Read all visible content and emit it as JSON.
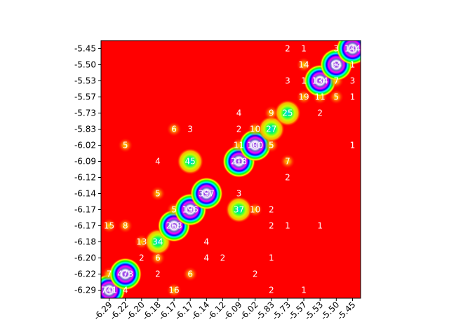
{
  "chart_data": {
    "type": "heatmap",
    "title": "",
    "xlabel": "",
    "ylabel": "",
    "colors": {
      "background": "#ff0000",
      "halo": "#ff6a00",
      "frame": "#000000"
    },
    "x_tick_labels": [
      "-6.29",
      "-6.22",
      "-6.20",
      "-6.18",
      "-6.17",
      "-6.17",
      "-6.14",
      "-6.12",
      "-6.09",
      "-6.02",
      "-5.83",
      "-5.73",
      "-5.57",
      "-5.53",
      "-5.50",
      "-5.45"
    ],
    "y_tick_labels": [
      "-5.45",
      "-5.50",
      "-5.53",
      "-5.57",
      "-5.73",
      "-5.83",
      "-6.02",
      "-6.09",
      "-6.12",
      "-6.14",
      "-6.17",
      "-6.17",
      "-6.18",
      "-6.20",
      "-6.22",
      "-6.29"
    ],
    "cells": [
      {
        "x": 0,
        "y": 15,
        "v": "741"
      },
      {
        "x": 1,
        "y": 15,
        "v": "4"
      },
      {
        "x": 4,
        "y": 15,
        "v": "16"
      },
      {
        "x": 10,
        "y": 15,
        "v": "2"
      },
      {
        "x": 12,
        "y": 15,
        "v": "1"
      },
      {
        "x": 0,
        "y": 14,
        "v": "7"
      },
      {
        "x": 1,
        "y": 14,
        "v": "473"
      },
      {
        "x": 3,
        "y": 14,
        "v": "2"
      },
      {
        "x": 5,
        "y": 14,
        "v": "6"
      },
      {
        "x": 9,
        "y": 14,
        "v": "2"
      },
      {
        "x": 2,
        "y": 13,
        "v": "2"
      },
      {
        "x": 3,
        "y": 13,
        "v": "6"
      },
      {
        "x": 6,
        "y": 13,
        "v": "4"
      },
      {
        "x": 7,
        "y": 13,
        "v": "2"
      },
      {
        "x": 10,
        "y": 13,
        "v": "1"
      },
      {
        "x": 2,
        "y": 12,
        "v": "13"
      },
      {
        "x": 3,
        "y": 12,
        "v": "34"
      },
      {
        "x": 6,
        "y": 12,
        "v": "4"
      },
      {
        "x": 0,
        "y": 11,
        "v": "15"
      },
      {
        "x": 1,
        "y": 11,
        "v": "8"
      },
      {
        "x": 4,
        "y": 11,
        "v": "268"
      },
      {
        "x": 10,
        "y": 11,
        "v": "2"
      },
      {
        "x": 11,
        "y": 11,
        "v": "1"
      },
      {
        "x": 13,
        "y": 11,
        "v": "1"
      },
      {
        "x": 4,
        "y": 10,
        "v": "5"
      },
      {
        "x": 5,
        "y": 10,
        "v": "196"
      },
      {
        "x": 8,
        "y": 10,
        "v": "37"
      },
      {
        "x": 9,
        "y": 10,
        "v": "10"
      },
      {
        "x": 10,
        "y": 10,
        "v": "2"
      },
      {
        "x": 3,
        "y": 9,
        "v": "5"
      },
      {
        "x": 6,
        "y": 9,
        "v": "397"
      },
      {
        "x": 8,
        "y": 9,
        "v": "3"
      },
      {
        "x": 11,
        "y": 8,
        "v": "2"
      },
      {
        "x": 3,
        "y": 7,
        "v": "4"
      },
      {
        "x": 5,
        "y": 7,
        "v": "45"
      },
      {
        "x": 8,
        "y": 7,
        "v": "218"
      },
      {
        "x": 11,
        "y": 7,
        "v": "7"
      },
      {
        "x": 1,
        "y": 6,
        "v": "5"
      },
      {
        "x": 8,
        "y": 6,
        "v": "11"
      },
      {
        "x": 9,
        "y": 6,
        "v": "100"
      },
      {
        "x": 10,
        "y": 6,
        "v": "5"
      },
      {
        "x": 15,
        "y": 6,
        "v": "1"
      },
      {
        "x": 4,
        "y": 5,
        "v": "6"
      },
      {
        "x": 5,
        "y": 5,
        "v": "3"
      },
      {
        "x": 8,
        "y": 5,
        "v": "2"
      },
      {
        "x": 9,
        "y": 5,
        "v": "10"
      },
      {
        "x": 10,
        "y": 5,
        "v": "27"
      },
      {
        "x": 8,
        "y": 4,
        "v": "4"
      },
      {
        "x": 10,
        "y": 4,
        "v": "9"
      },
      {
        "x": 11,
        "y": 4,
        "v": "25"
      },
      {
        "x": 13,
        "y": 4,
        "v": "2"
      },
      {
        "x": 12,
        "y": 3,
        "v": "19"
      },
      {
        "x": 13,
        "y": 3,
        "v": "11"
      },
      {
        "x": 14,
        "y": 3,
        "v": "5"
      },
      {
        "x": 15,
        "y": 3,
        "v": "1"
      },
      {
        "x": 11,
        "y": 2,
        "v": "3"
      },
      {
        "x": 12,
        "y": 2,
        "v": "1"
      },
      {
        "x": 13,
        "y": 2,
        "v": "134"
      },
      {
        "x": 14,
        "y": 2,
        "v": "7"
      },
      {
        "x": 15,
        "y": 2,
        "v": "3"
      },
      {
        "x": 12,
        "y": 1,
        "v": "14"
      },
      {
        "x": 14,
        "y": 1,
        "v": "94"
      },
      {
        "x": 15,
        "y": 1,
        "v": "1"
      },
      {
        "x": 11,
        "y": 0,
        "v": "2"
      },
      {
        "x": 12,
        "y": 0,
        "v": "1"
      },
      {
        "x": 14,
        "y": 0,
        "v": "3"
      },
      {
        "x": 15,
        "y": 0,
        "v": "144"
      }
    ]
  }
}
